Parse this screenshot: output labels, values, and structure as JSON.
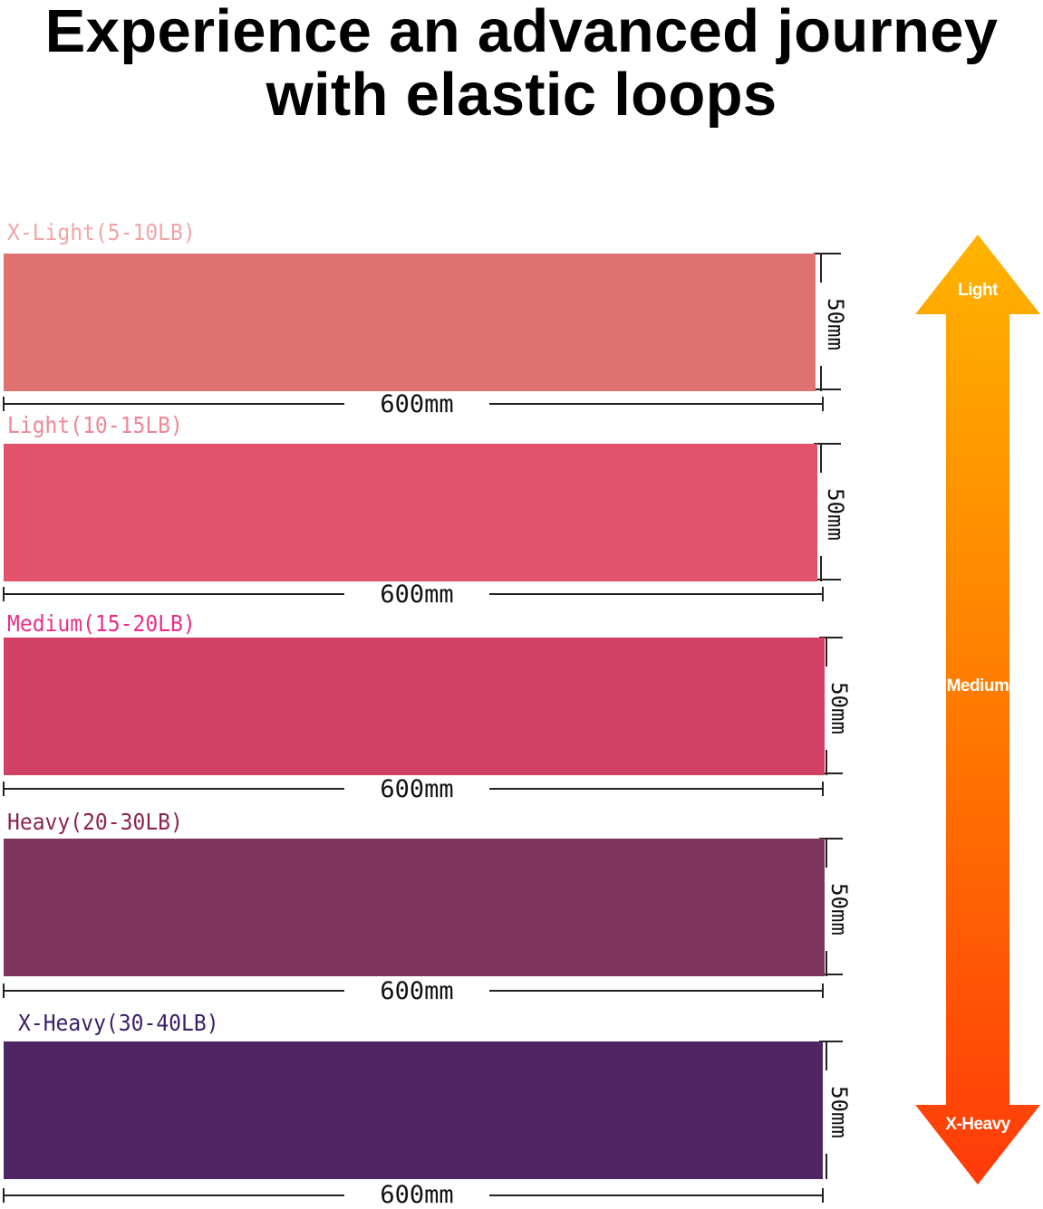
{
  "headline": {
    "line1": "Experience an advanced journey",
    "line2": "with elastic loops"
  },
  "bands": [
    {
      "label": "X-Light(5-10LB)",
      "label_color": "#f1a5a6",
      "color": "#df7170",
      "length": "600mm",
      "width": "50mm"
    },
    {
      "label": "Light(10-15LB)",
      "label_color": "#ef8797",
      "color": "#e2526b",
      "length": "600mm",
      "width": "50mm"
    },
    {
      "label": "Medium(15-20LB)",
      "label_color": "#ea2f86",
      "color": "#d24066",
      "length": "600mm",
      "width": "50mm"
    },
    {
      "label": "Heavy(20-30LB)",
      "label_color": "#8b2450",
      "color": "#7e355c",
      "length": "600mm",
      "width": "50mm"
    },
    {
      "label": "X-Heavy(30-40LB)",
      "label_color": "#3a1f66",
      "color": "#4f2663",
      "length": "600mm",
      "width": "50mm"
    }
  ],
  "scale_arrow": {
    "top_label": "Light",
    "middle_label": "Medium",
    "bottom_label": "X-Heavy",
    "gradient": [
      "#ffb300",
      "#ff7a00",
      "#ff3a0a"
    ]
  }
}
